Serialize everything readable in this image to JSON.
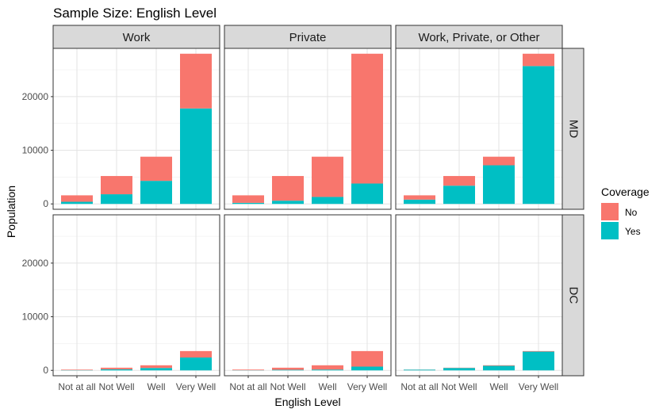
{
  "chart_data": {
    "type": "bar",
    "stacked": true,
    "title": "Sample Size: English Level",
    "xlabel": "English Level",
    "ylabel": "Population",
    "categories": [
      "Not at all",
      "Not Well",
      "Well",
      "Very Well"
    ],
    "ylim": [
      -1000,
      29000
    ],
    "yticks": [
      0,
      10000,
      20000
    ],
    "grid": true,
    "facet_columns": [
      "Work",
      "Private",
      "Work, Private, or Other"
    ],
    "facet_rows": [
      "MD",
      "DC"
    ],
    "legend": {
      "title": "Coverage",
      "position": "right",
      "entries": [
        {
          "label": "No",
          "color": "#F8766D"
        },
        {
          "label": "Yes",
          "color": "#00BFC4"
        }
      ]
    },
    "panels": [
      {
        "row": "MD",
        "column": "Work",
        "series": [
          {
            "name": "No",
            "values": [
              1200,
              3400,
              4500,
              10200
            ]
          },
          {
            "name": "Yes",
            "values": [
              400,
              1800,
              4300,
              17800
            ]
          }
        ]
      },
      {
        "row": "MD",
        "column": "Private",
        "series": [
          {
            "name": "No",
            "values": [
              1400,
              4600,
              7500,
              24200
            ]
          },
          {
            "name": "Yes",
            "values": [
              200,
              600,
              1300,
              3800
            ]
          }
        ]
      },
      {
        "row": "MD",
        "column": "Work, Private, or Other",
        "series": [
          {
            "name": "No",
            "values": [
              800,
              1800,
              1600,
              2300
            ]
          },
          {
            "name": "Yes",
            "values": [
              800,
              3400,
              7200,
              25700
            ]
          }
        ]
      },
      {
        "row": "DC",
        "column": "Work",
        "series": [
          {
            "name": "No",
            "values": [
              100,
              300,
              500,
              1200
            ]
          },
          {
            "name": "Yes",
            "values": [
              50,
              200,
              450,
              2400
            ]
          }
        ]
      },
      {
        "row": "DC",
        "column": "Private",
        "series": [
          {
            "name": "No",
            "values": [
              120,
              400,
              800,
              2900
            ]
          },
          {
            "name": "Yes",
            "values": [
              30,
              100,
              150,
              700
            ]
          }
        ]
      },
      {
        "row": "DC",
        "column": "Work, Private, or Other",
        "series": [
          {
            "name": "No",
            "values": [
              20,
              50,
              100,
              100
            ]
          },
          {
            "name": "Yes",
            "values": [
              130,
              450,
              850,
              3500
            ]
          }
        ]
      }
    ]
  }
}
